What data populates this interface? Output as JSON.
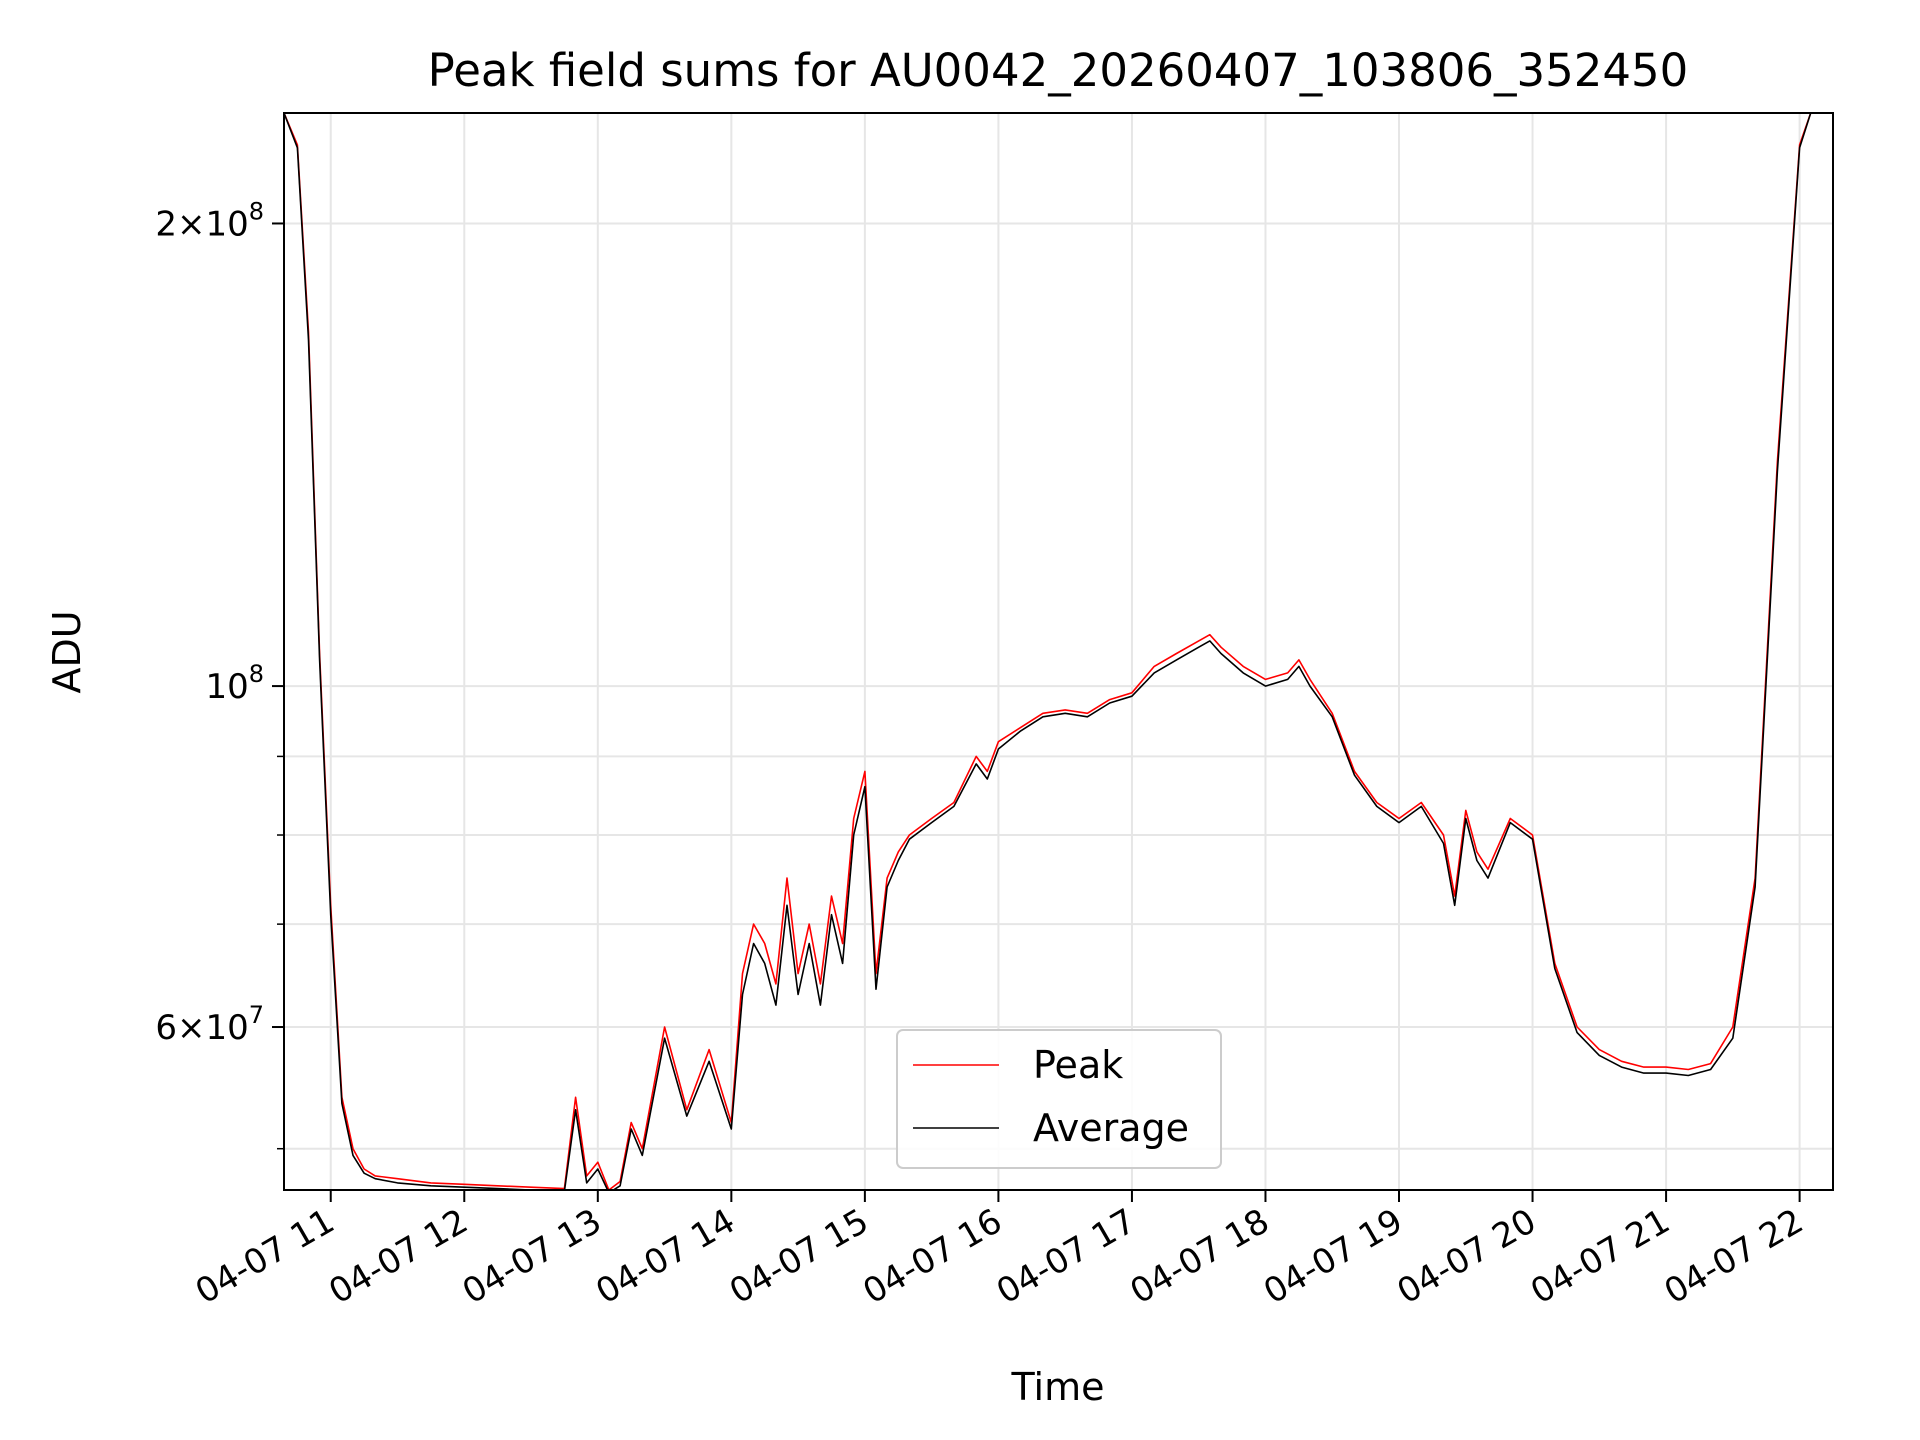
{
  "chart_data": {
    "type": "line",
    "title": "Peak field sums for AU0042_20260407_103806_352450",
    "xlabel": "Time",
    "ylabel": "ADU",
    "yscale": "log",
    "grid": true,
    "legend_position": "bottom-center",
    "xlim": [
      "2026-04-07 10:39",
      "2026-04-07 22:15"
    ],
    "ylim": [
      47000000,
      236000000
    ],
    "x_ticks": [
      "2026-04-07 11:00",
      "2026-04-07 12:00",
      "2026-04-07 13:00",
      "2026-04-07 14:00",
      "2026-04-07 15:00",
      "2026-04-07 16:00",
      "2026-04-07 17:00",
      "2026-04-07 18:00",
      "2026-04-07 19:00",
      "2026-04-07 20:00",
      "2026-04-07 21:00",
      "2026-04-07 22:00"
    ],
    "x_tick_labels": [
      "04-07 11",
      "04-07 12",
      "04-07 13",
      "04-07 14",
      "04-07 15",
      "04-07 16",
      "04-07 17",
      "04-07 18",
      "04-07 19",
      "04-07 20",
      "04-07 21",
      "04-07 22"
    ],
    "y_ticks": [
      {
        "value": 200000000,
        "mantissa": "2",
        "exponent": "8"
      },
      {
        "value": 100000000,
        "mantissa": "",
        "exponent": "8"
      },
      {
        "value": 60000000,
        "mantissa": "6",
        "exponent": "7"
      }
    ],
    "y_minor_ticks": [
      50000000,
      70000000,
      80000000,
      90000000
    ],
    "series": [
      {
        "name": "Peak",
        "color": "#ff0000",
        "x": [
          "2026-04-07 10:39",
          "2026-04-07 10:45",
          "2026-04-07 10:50",
          "2026-04-07 10:55",
          "2026-04-07 11:00",
          "2026-04-07 11:05",
          "2026-04-07 11:10",
          "2026-04-07 11:15",
          "2026-04-07 11:20",
          "2026-04-07 11:30",
          "2026-04-07 11:45",
          "2026-04-07 12:00",
          "2026-04-07 12:15",
          "2026-04-07 12:30",
          "2026-04-07 12:45",
          "2026-04-07 12:50",
          "2026-04-07 12:55",
          "2026-04-07 13:00",
          "2026-04-07 13:05",
          "2026-04-07 13:10",
          "2026-04-07 13:15",
          "2026-04-07 13:20",
          "2026-04-07 13:30",
          "2026-04-07 13:40",
          "2026-04-07 13:50",
          "2026-04-07 14:00",
          "2026-04-07 14:05",
          "2026-04-07 14:10",
          "2026-04-07 14:15",
          "2026-04-07 14:20",
          "2026-04-07 14:25",
          "2026-04-07 14:30",
          "2026-04-07 14:35",
          "2026-04-07 14:40",
          "2026-04-07 14:45",
          "2026-04-07 14:50",
          "2026-04-07 14:55",
          "2026-04-07 15:00",
          "2026-04-07 15:05",
          "2026-04-07 15:10",
          "2026-04-07 15:15",
          "2026-04-07 15:20",
          "2026-04-07 15:30",
          "2026-04-07 15:40",
          "2026-04-07 15:50",
          "2026-04-07 15:55",
          "2026-04-07 16:00",
          "2026-04-07 16:10",
          "2026-04-07 16:20",
          "2026-04-07 16:30",
          "2026-04-07 16:40",
          "2026-04-07 16:50",
          "2026-04-07 17:00",
          "2026-04-07 17:10",
          "2026-04-07 17:20",
          "2026-04-07 17:30",
          "2026-04-07 17:35",
          "2026-04-07 17:40",
          "2026-04-07 17:50",
          "2026-04-07 18:00",
          "2026-04-07 18:10",
          "2026-04-07 18:15",
          "2026-04-07 18:20",
          "2026-04-07 18:30",
          "2026-04-07 18:40",
          "2026-04-07 18:50",
          "2026-04-07 19:00",
          "2026-04-07 19:10",
          "2026-04-07 19:20",
          "2026-04-07 19:25",
          "2026-04-07 19:30",
          "2026-04-07 19:35",
          "2026-04-07 19:40",
          "2026-04-07 19:50",
          "2026-04-07 20:00",
          "2026-04-07 20:10",
          "2026-04-07 20:20",
          "2026-04-07 20:30",
          "2026-04-07 20:40",
          "2026-04-07 20:50",
          "2026-04-07 21:00",
          "2026-04-07 21:10",
          "2026-04-07 21:20",
          "2026-04-07 21:30",
          "2026-04-07 21:40",
          "2026-04-07 21:50",
          "2026-04-07 22:00",
          "2026-04-07 22:05"
        ],
        "values": [
          236000000,
          225000000,
          170000000,
          105000000,
          72000000,
          54000000,
          50000000,
          48500000,
          48000000,
          47800000,
          47500000,
          47400000,
          47300000,
          47200000,
          47100000,
          54000000,
          48000000,
          49000000,
          47000000,
          47600000,
          52000000,
          50000000,
          60000000,
          53000000,
          58000000,
          52000000,
          65000000,
          70000000,
          68000000,
          64000000,
          75000000,
          65000000,
          70000000,
          64000000,
          73000000,
          68000000,
          82000000,
          88000000,
          65000000,
          75000000,
          78000000,
          80000000,
          82000000,
          84000000,
          90000000,
          88000000,
          92000000,
          94000000,
          96000000,
          96500000,
          96000000,
          98000000,
          99000000,
          103000000,
          105000000,
          107000000,
          108000000,
          106000000,
          103000000,
          101000000,
          102000000,
          104000000,
          101000000,
          96000000,
          88000000,
          84000000,
          82000000,
          84000000,
          80000000,
          73000000,
          83000000,
          78000000,
          76000000,
          82000000,
          80000000,
          66000000,
          60000000,
          58000000,
          57000000,
          56500000,
          56500000,
          56300000,
          56800000,
          60000000,
          75000000,
          140000000,
          225000000,
          236000000
        ]
      },
      {
        "name": "Average",
        "color": "#000000",
        "x": [
          "2026-04-07 10:39",
          "2026-04-07 10:45",
          "2026-04-07 10:50",
          "2026-04-07 10:55",
          "2026-04-07 11:00",
          "2026-04-07 11:05",
          "2026-04-07 11:10",
          "2026-04-07 11:15",
          "2026-04-07 11:20",
          "2026-04-07 11:30",
          "2026-04-07 11:45",
          "2026-04-07 12:00",
          "2026-04-07 12:15",
          "2026-04-07 12:30",
          "2026-04-07 12:45",
          "2026-04-07 12:50",
          "2026-04-07 12:55",
          "2026-04-07 13:00",
          "2026-04-07 13:05",
          "2026-04-07 13:10",
          "2026-04-07 13:15",
          "2026-04-07 13:20",
          "2026-04-07 13:30",
          "2026-04-07 13:40",
          "2026-04-07 13:50",
          "2026-04-07 14:00",
          "2026-04-07 14:05",
          "2026-04-07 14:10",
          "2026-04-07 14:15",
          "2026-04-07 14:20",
          "2026-04-07 14:25",
          "2026-04-07 14:30",
          "2026-04-07 14:35",
          "2026-04-07 14:40",
          "2026-04-07 14:45",
          "2026-04-07 14:50",
          "2026-04-07 14:55",
          "2026-04-07 15:00",
          "2026-04-07 15:05",
          "2026-04-07 15:10",
          "2026-04-07 15:15",
          "2026-04-07 15:20",
          "2026-04-07 15:30",
          "2026-04-07 15:40",
          "2026-04-07 15:50",
          "2026-04-07 15:55",
          "2026-04-07 16:00",
          "2026-04-07 16:10",
          "2026-04-07 16:20",
          "2026-04-07 16:30",
          "2026-04-07 16:40",
          "2026-04-07 16:50",
          "2026-04-07 17:00",
          "2026-04-07 17:10",
          "2026-04-07 17:20",
          "2026-04-07 17:30",
          "2026-04-07 17:35",
          "2026-04-07 17:40",
          "2026-04-07 17:50",
          "2026-04-07 18:00",
          "2026-04-07 18:10",
          "2026-04-07 18:15",
          "2026-04-07 18:20",
          "2026-04-07 18:30",
          "2026-04-07 18:40",
          "2026-04-07 18:50",
          "2026-04-07 19:00",
          "2026-04-07 19:10",
          "2026-04-07 19:20",
          "2026-04-07 19:25",
          "2026-04-07 19:30",
          "2026-04-07 19:35",
          "2026-04-07 19:40",
          "2026-04-07 19:50",
          "2026-04-07 20:00",
          "2026-04-07 20:10",
          "2026-04-07 20:20",
          "2026-04-07 20:30",
          "2026-04-07 20:40",
          "2026-04-07 20:50",
          "2026-04-07 21:00",
          "2026-04-07 21:10",
          "2026-04-07 21:20",
          "2026-04-07 21:30",
          "2026-04-07 21:40",
          "2026-04-07 21:50",
          "2026-04-07 22:00",
          "2026-04-07 22:05"
        ],
        "values": [
          236000000,
          224000000,
          168000000,
          104000000,
          71000000,
          53500000,
          49500000,
          48200000,
          47800000,
          47500000,
          47300000,
          47200000,
          47100000,
          47000000,
          46900000,
          53000000,
          47500000,
          48500000,
          46800000,
          47300000,
          51500000,
          49500000,
          59000000,
          52500000,
          57000000,
          51500000,
          63000000,
          68000000,
          66000000,
          62000000,
          72000000,
          63000000,
          68000000,
          62000000,
          71000000,
          66000000,
          80000000,
          86000000,
          63500000,
          74000000,
          77000000,
          79500000,
          81500000,
          83500000,
          89000000,
          87000000,
          91000000,
          93500000,
          95500000,
          96000000,
          95500000,
          97500000,
          98500000,
          102000000,
          104000000,
          106000000,
          107000000,
          105000000,
          102000000,
          100000000,
          101000000,
          103000000,
          100000000,
          95500000,
          87500000,
          83500000,
          81500000,
          83500000,
          79000000,
          72000000,
          82000000,
          77000000,
          75000000,
          81500000,
          79500000,
          65500000,
          59500000,
          57500000,
          56500000,
          56000000,
          56000000,
          55800000,
          56300000,
          59000000,
          74000000,
          138000000,
          224000000,
          236000000
        ]
      }
    ]
  }
}
